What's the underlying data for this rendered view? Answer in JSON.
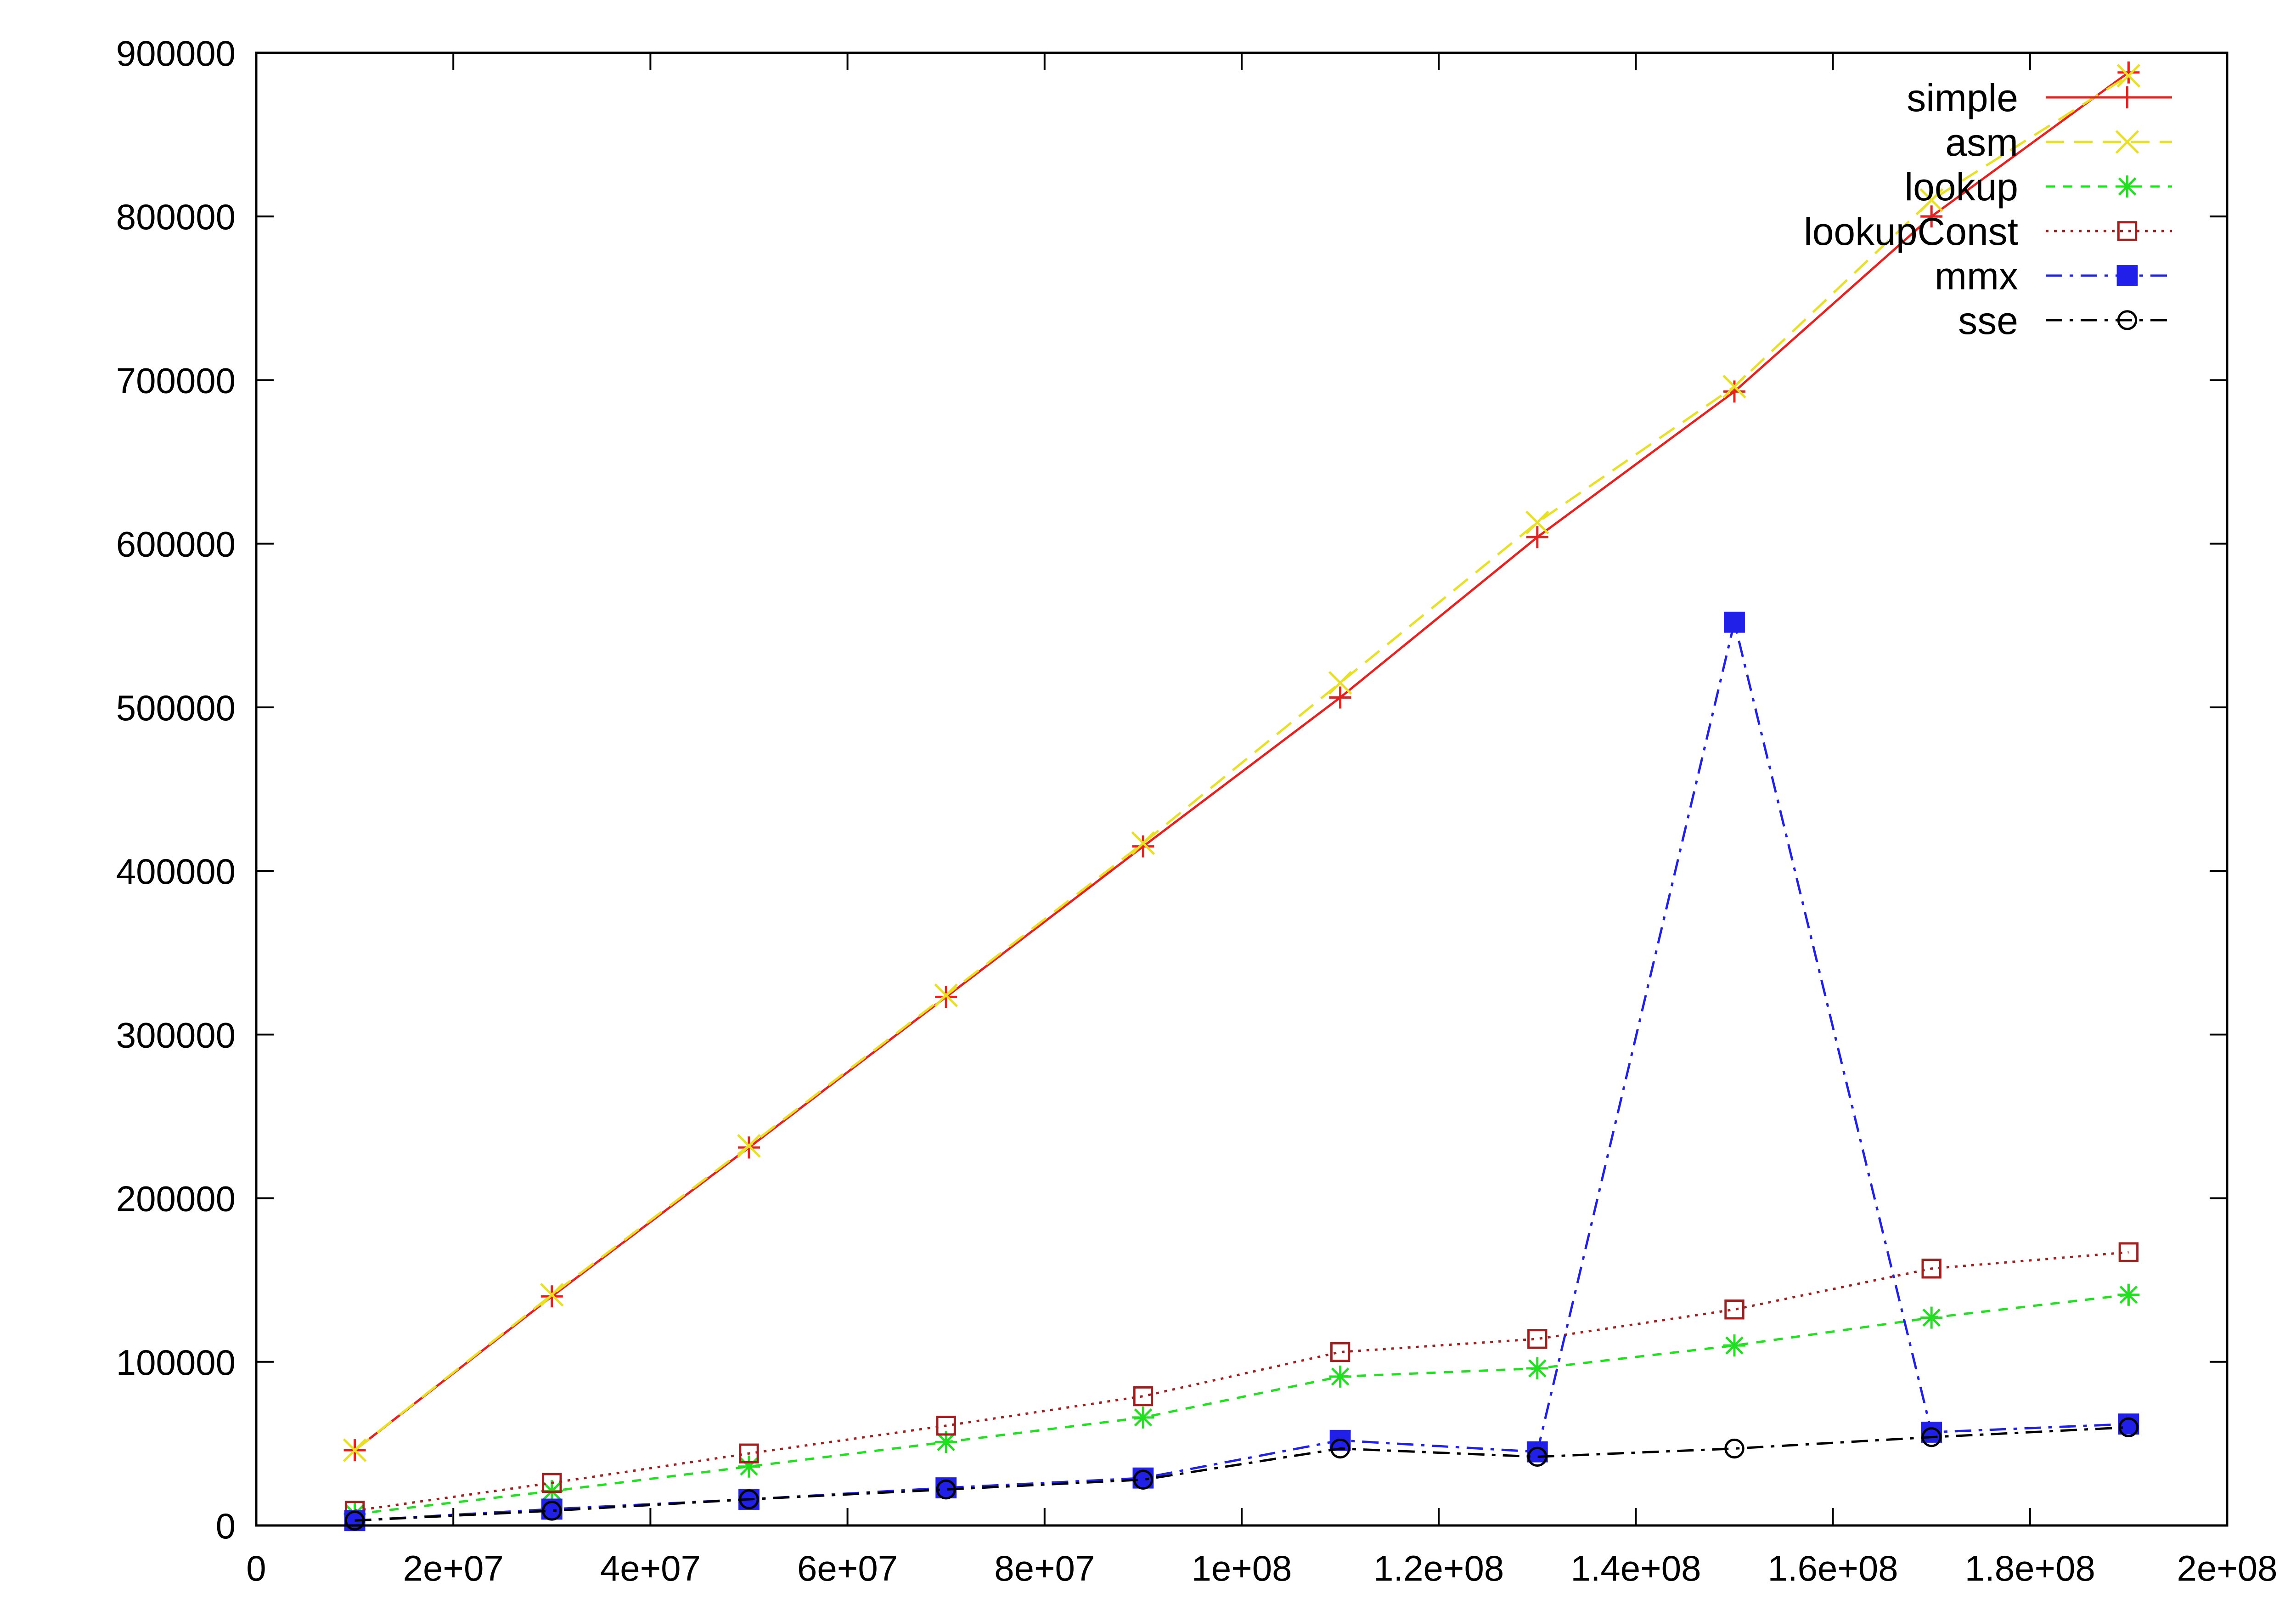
{
  "chart_data": {
    "type": "line",
    "title": "",
    "xlabel": "",
    "ylabel": "",
    "xlim": [
      0,
      200000000
    ],
    "ylim": [
      0,
      900000
    ],
    "grid": false,
    "legend_position": "top-right",
    "x_ticks": [
      {
        "value": 0,
        "label": "0"
      },
      {
        "value": 20000000,
        "label": "2e+07"
      },
      {
        "value": 40000000,
        "label": "4e+07"
      },
      {
        "value": 60000000,
        "label": "6e+07"
      },
      {
        "value": 80000000,
        "label": "8e+07"
      },
      {
        "value": 100000000,
        "label": "1e+08"
      },
      {
        "value": 120000000,
        "label": "1.2e+08"
      },
      {
        "value": 140000000,
        "label": "1.4e+08"
      },
      {
        "value": 160000000,
        "label": "1.6e+08"
      },
      {
        "value": 180000000,
        "label": "1.8e+08"
      },
      {
        "value": 200000000,
        "label": "2e+08"
      }
    ],
    "y_ticks": [
      {
        "value": 0,
        "label": "0"
      },
      {
        "value": 100000,
        "label": "100000"
      },
      {
        "value": 200000,
        "label": "200000"
      },
      {
        "value": 300000,
        "label": "300000"
      },
      {
        "value": 400000,
        "label": "400000"
      },
      {
        "value": 500000,
        "label": "500000"
      },
      {
        "value": 600000,
        "label": "600000"
      },
      {
        "value": 700000,
        "label": "700000"
      },
      {
        "value": 800000,
        "label": "800000"
      },
      {
        "value": 900000,
        "label": "900000"
      }
    ],
    "x": [
      10000000,
      30000000,
      50000000,
      70000000,
      90000000,
      110000000,
      130000000,
      150000000,
      170000000,
      190000000
    ],
    "series": [
      {
        "name": "simple",
        "color": "#e8201e",
        "dash": "solid",
        "marker": "plus",
        "values": [
          46000,
          140000,
          231000,
          323000,
          415000,
          506000,
          604000,
          693000,
          800000,
          888000
        ]
      },
      {
        "name": "asm",
        "color": "#e8e020",
        "dash": "dashed",
        "marker": "cross",
        "values": [
          46000,
          141000,
          232000,
          324000,
          417000,
          515000,
          613000,
          696000,
          810000,
          886000
        ]
      },
      {
        "name": "lookup",
        "color": "#20e020",
        "dash": "short-dashed",
        "marker": "star",
        "values": [
          7000,
          21000,
          36000,
          51000,
          66000,
          91000,
          96000,
          110000,
          127000,
          141000
        ]
      },
      {
        "name": "lookupConst",
        "color": "#a02020",
        "dash": "dotted",
        "marker": "open-square",
        "values": [
          9000,
          26000,
          44000,
          61000,
          79000,
          106000,
          114000,
          132000,
          157000,
          167000
        ]
      },
      {
        "name": "mmx",
        "color": "#2020e8",
        "dash": "dash-dot",
        "marker": "filled-square",
        "values": [
          3000,
          10000,
          16000,
          23000,
          29000,
          52000,
          45000,
          552000,
          57000,
          62000
        ]
      },
      {
        "name": "sse",
        "color": "#000000",
        "dash": "dash-dot",
        "marker": "open-circle",
        "values": [
          3000,
          9000,
          16000,
          22000,
          28000,
          47000,
          42000,
          47000,
          54000,
          60000
        ]
      }
    ]
  }
}
